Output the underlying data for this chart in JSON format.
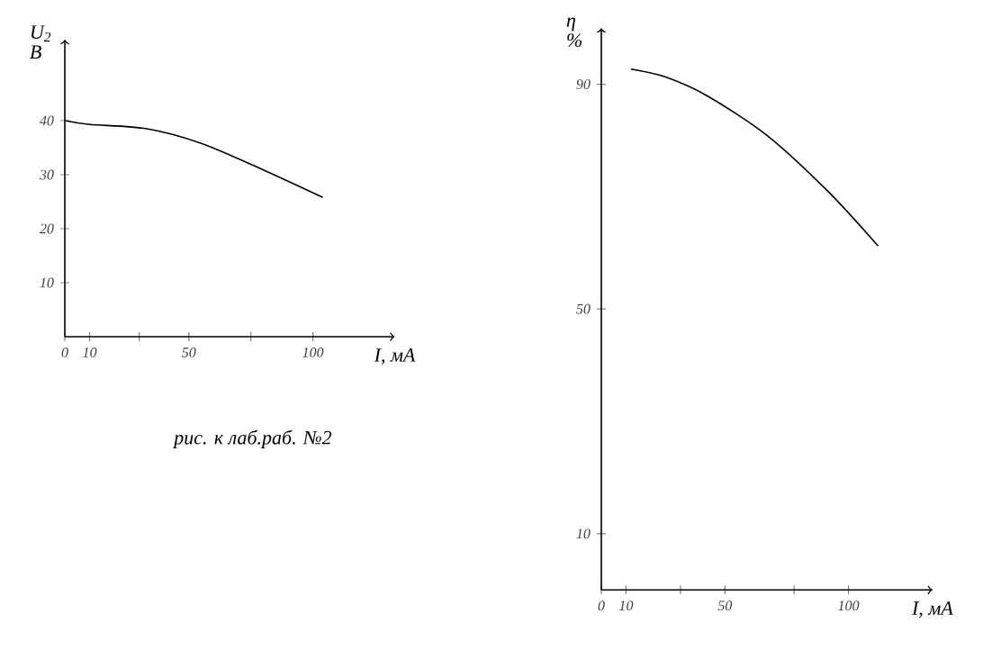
{
  "chart_data": [
    {
      "type": "line",
      "xlabel": "I, мА",
      "ylabel": "U$_{2}$ В",
      "xlim": [
        0,
        133
      ],
      "ylim": [
        0,
        55
      ],
      "xticks": [
        0,
        10,
        {
          "value": 30,
          "label": null
        },
        50,
        {
          "value": 75,
          "label": null
        },
        100
      ],
      "yticks": [
        10,
        20,
        30,
        40
      ],
      "annotations": [
        "рис. к лаб.раб. №2"
      ],
      "series": [
        {
          "color": "#000000",
          "x": [
            0,
            10,
            33,
            55,
            78,
            104
          ],
          "values": [
            40,
            39.3,
            38.5,
            35.8,
            31.3,
            25.8
          ]
        }
      ]
    },
    {
      "type": "line",
      "xlabel": "I, мА",
      "ylabel": "η %",
      "xlim": [
        0,
        134
      ],
      "ylim": [
        0,
        100
      ],
      "xticks": [
        0,
        10,
        {
          "value": 32,
          "label": null
        },
        50,
        {
          "value": 78,
          "label": null
        },
        100
      ],
      "yticks": [
        10,
        50,
        90
      ],
      "series": [
        {
          "color": "#000000",
          "x": [
            12,
            26,
            43,
            67,
            92,
            112
          ],
          "values": [
            92.7,
            91.3,
            87.9,
            80.9,
            70.8,
            61.2
          ]
        }
      ]
    }
  ]
}
